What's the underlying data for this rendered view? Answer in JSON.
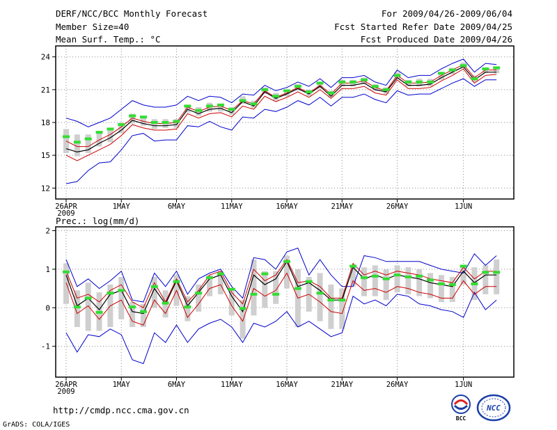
{
  "header": {
    "title": "DERF/NCC/BCC Monthly Forecast",
    "member_size": "Member Size=40",
    "variable": "Mean Surf. Temp.: °C",
    "period": "For 2009/04/26-2009/06/04",
    "started": "Fcst Started Refer Date 2009/04/25",
    "produced": "Fcst Produced Date 2009/04/26"
  },
  "precip_title": "Prec.: log(mm/d)",
  "footer": {
    "url": "http://cmdp.ncc.cma.gov.cn",
    "credit": "GrADS: COLA/IGES",
    "logo_left_text": "BCC",
    "logo_right_text": "NCC"
  },
  "colors": {
    "envelope": "#0000cc",
    "spread": "#cc0000",
    "mean": "#000000",
    "box": "#cfcfcf",
    "obs": "#33dd33"
  },
  "chart_data": [
    {
      "type": "line",
      "title": "Mean Surf. Temp.: °C",
      "ylim": [
        11,
        25
      ],
      "yticks": [
        12,
        15,
        18,
        21,
        24
      ],
      "xticks": [
        {
          "day": 0,
          "label": "26APR",
          "sub": "2009"
        },
        {
          "day": 5,
          "label": "1MAY"
        },
        {
          "day": 10,
          "label": "6MAY"
        },
        {
          "day": 15,
          "label": "11MAY"
        },
        {
          "day": 20,
          "label": "16MAY"
        },
        {
          "day": 25,
          "label": "21MAY"
        },
        {
          "day": 30,
          "label": "26MAY"
        },
        {
          "day": 36,
          "label": "1JUN"
        }
      ],
      "series": [
        {
          "name": "max",
          "values": [
            18.4,
            18.1,
            17.6,
            18.0,
            18.4,
            19.2,
            20.0,
            19.6,
            19.4,
            19.4,
            19.6,
            20.4,
            20.0,
            20.4,
            20.3,
            19.8,
            20.6,
            20.5,
            21.4,
            20.9,
            21.2,
            21.7,
            21.3,
            22.0,
            21.2,
            22.1,
            22.1,
            22.3,
            21.7,
            21.4,
            22.8,
            22.1,
            22.3,
            22.3,
            22.9,
            23.4,
            23.8,
            22.6,
            23.4,
            23.3
          ]
        },
        {
          "name": "upper",
          "values": [
            16.3,
            15.8,
            15.8,
            16.4,
            16.9,
            17.6,
            18.4,
            18.1,
            17.9,
            17.9,
            18.0,
            19.4,
            19.0,
            19.4,
            19.5,
            19.1,
            20.0,
            19.7,
            20.9,
            20.3,
            20.7,
            21.2,
            20.7,
            21.4,
            20.6,
            21.6,
            21.6,
            21.8,
            21.2,
            20.9,
            22.3,
            21.6,
            21.6,
            21.7,
            22.3,
            22.8,
            23.3,
            22.1,
            22.8,
            22.8
          ]
        },
        {
          "name": "mean",
          "values": [
            15.6,
            15.3,
            15.5,
            16.1,
            16.6,
            17.3,
            18.2,
            17.9,
            17.7,
            17.7,
            17.8,
            19.2,
            18.8,
            19.2,
            19.3,
            18.9,
            19.9,
            19.5,
            20.8,
            20.2,
            20.6,
            21.1,
            20.6,
            21.3,
            20.4,
            21.4,
            21.4,
            21.6,
            21.0,
            20.8,
            22.1,
            21.4,
            21.4,
            21.5,
            22.1,
            22.6,
            23.1,
            21.9,
            22.6,
            22.6
          ]
        },
        {
          "name": "lower",
          "values": [
            15.0,
            14.5,
            15.0,
            15.5,
            16.0,
            16.8,
            17.8,
            17.5,
            17.3,
            17.3,
            17.4,
            18.8,
            18.4,
            18.8,
            18.9,
            18.5,
            19.5,
            19.2,
            20.4,
            19.9,
            20.3,
            20.8,
            20.3,
            21.0,
            20.2,
            21.1,
            21.1,
            21.3,
            20.7,
            20.5,
            21.9,
            21.1,
            21.1,
            21.2,
            21.8,
            22.3,
            22.9,
            21.6,
            22.3,
            22.4
          ]
        },
        {
          "name": "min",
          "values": [
            12.4,
            12.6,
            13.6,
            14.3,
            14.4,
            15.5,
            16.8,
            17.0,
            16.3,
            16.4,
            16.4,
            17.7,
            17.6,
            18.1,
            17.6,
            17.3,
            18.5,
            18.4,
            19.2,
            19.0,
            19.4,
            20.0,
            19.6,
            20.3,
            19.5,
            20.3,
            20.3,
            20.6,
            20.1,
            19.8,
            20.9,
            20.5,
            20.6,
            20.6,
            21.1,
            21.6,
            22.0,
            21.3,
            21.9,
            21.9
          ]
        },
        {
          "name": "box_top",
          "values": [
            17.4,
            16.9,
            16.9,
            17.2,
            17.4,
            18.0,
            18.8,
            18.6,
            18.3,
            18.3,
            18.3,
            19.6,
            19.4,
            19.8,
            19.7,
            19.4,
            20.4,
            20.0,
            21.2,
            20.7,
            21.0,
            21.5,
            21.0,
            21.7,
            20.9,
            21.9,
            21.9,
            22.1,
            21.5,
            21.2,
            22.6,
            21.9,
            22.0,
            22.0,
            22.6,
            23.0,
            23.5,
            22.3,
            23.0,
            23.0
          ]
        },
        {
          "name": "box_bottom",
          "values": [
            15.2,
            14.9,
            15.2,
            15.8,
            16.2,
            17.0,
            17.9,
            17.7,
            17.4,
            17.5,
            17.5,
            18.9,
            18.6,
            19.0,
            19.0,
            18.7,
            19.7,
            19.3,
            20.6,
            20.0,
            20.4,
            20.9,
            20.4,
            21.1,
            20.3,
            21.3,
            21.3,
            21.5,
            20.9,
            20.6,
            22.0,
            21.3,
            21.3,
            21.3,
            21.9,
            22.4,
            23.0,
            21.7,
            22.5,
            22.5
          ]
        },
        {
          "name": "observed",
          "values": [
            16.7,
            16.2,
            16.5,
            17.1,
            17.4,
            17.8,
            18.6,
            18.5,
            18.0,
            18.0,
            18.1,
            19.5,
            19.1,
            19.5,
            19.6,
            19.2,
            20.0,
            19.7,
            21.0,
            20.4,
            20.9,
            21.3,
            20.8,
            21.6,
            20.7,
            21.7,
            21.7,
            21.9,
            21.3,
            21.0,
            22.3,
            21.7,
            21.7,
            21.7,
            22.5,
            22.8,
            23.2,
            22.0,
            22.9,
            23.0
          ]
        }
      ]
    },
    {
      "type": "line",
      "title": "Prec.: log(mm/d)",
      "ylim": [
        -1.8,
        2.1
      ],
      "yticks": [
        -1,
        0,
        1,
        2
      ],
      "xticks": [
        {
          "day": 0,
          "label": "26APR",
          "sub": "2009"
        },
        {
          "day": 5,
          "label": "1MAY"
        },
        {
          "day": 10,
          "label": "6MAY"
        },
        {
          "day": 15,
          "label": "11MAY"
        },
        {
          "day": 20,
          "label": "16MAY"
        },
        {
          "day": 25,
          "label": "21MAY"
        },
        {
          "day": 30,
          "label": "26MAY"
        },
        {
          "day": 36,
          "label": "1JUN"
        }
      ],
      "series": [
        {
          "name": "max",
          "values": [
            1.25,
            0.55,
            0.75,
            0.5,
            0.7,
            0.95,
            0.2,
            0.15,
            0.9,
            0.55,
            0.95,
            0.35,
            0.75,
            0.9,
            1.0,
            0.55,
            0.25,
            1.3,
            1.25,
            1.0,
            1.45,
            1.55,
            0.85,
            1.25,
            0.85,
            0.55,
            0.55,
            1.35,
            1.3,
            1.2,
            1.2,
            1.2,
            1.2,
            1.1,
            1.0,
            0.95,
            0.9,
            1.4,
            1.1,
            1.35
          ]
        },
        {
          "name": "upper",
          "values": [
            0.95,
            0.25,
            0.35,
            0.15,
            0.45,
            0.6,
            0.15,
            0.0,
            0.65,
            0.15,
            0.75,
            0.15,
            0.45,
            0.85,
            0.95,
            0.4,
            0.1,
            1.0,
            0.7,
            0.85,
            1.25,
            0.65,
            0.7,
            0.55,
            0.25,
            0.25,
            1.15,
            0.85,
            0.95,
            0.85,
            0.95,
            0.9,
            0.85,
            0.75,
            0.7,
            0.65,
            1.05,
            0.75,
            0.95,
            0.95
          ]
        },
        {
          "name": "mean",
          "values": [
            0.85,
            0.05,
            0.25,
            -0.05,
            0.35,
            0.45,
            -0.1,
            -0.15,
            0.5,
            0.1,
            0.7,
            0.05,
            0.4,
            0.75,
            0.85,
            0.3,
            -0.1,
            0.85,
            0.6,
            0.75,
            1.2,
            0.55,
            0.65,
            0.45,
            0.2,
            0.2,
            1.05,
            0.75,
            0.85,
            0.75,
            0.85,
            0.8,
            0.75,
            0.65,
            0.6,
            0.55,
            0.95,
            0.65,
            0.85,
            0.85
          ]
        },
        {
          "name": "lower",
          "values": [
            0.65,
            -0.15,
            0.05,
            -0.3,
            0.05,
            0.2,
            -0.35,
            -0.45,
            0.2,
            -0.15,
            0.45,
            -0.25,
            0.1,
            0.5,
            0.6,
            0.05,
            -0.35,
            0.5,
            0.3,
            0.45,
            0.9,
            0.25,
            0.35,
            0.15,
            -0.1,
            -0.15,
            0.7,
            0.45,
            0.5,
            0.4,
            0.55,
            0.5,
            0.4,
            0.35,
            0.25,
            0.25,
            0.7,
            0.35,
            0.55,
            0.55
          ]
        },
        {
          "name": "min",
          "values": [
            -0.65,
            -1.15,
            -0.7,
            -0.75,
            -0.55,
            -0.7,
            -1.35,
            -1.45,
            -0.65,
            -0.9,
            -0.45,
            -0.9,
            -0.55,
            -0.4,
            -0.3,
            -0.5,
            -0.9,
            -0.4,
            -0.5,
            -0.35,
            -0.1,
            -0.5,
            -0.35,
            -0.55,
            -0.75,
            -0.65,
            0.3,
            0.1,
            0.2,
            0.05,
            0.35,
            0.3,
            0.1,
            0.05,
            -0.05,
            -0.1,
            -0.25,
            0.4,
            -0.05,
            0.2
          ]
        },
        {
          "name": "box_top",
          "values": [
            1.15,
            0.45,
            0.65,
            0.4,
            0.6,
            0.8,
            0.15,
            0.1,
            0.8,
            0.45,
            0.85,
            0.3,
            0.6,
            0.85,
            0.95,
            0.5,
            0.2,
            1.25,
            0.95,
            0.95,
            1.35,
            1.0,
            0.8,
            0.9,
            0.6,
            0.5,
            1.1,
            1.05,
            1.1,
            1.0,
            1.1,
            1.05,
            1.0,
            0.9,
            0.85,
            0.8,
            1.05,
            1.05,
            1.1,
            1.25
          ]
        },
        {
          "name": "box_bottom",
          "values": [
            0.1,
            -0.5,
            -0.6,
            -0.6,
            -0.5,
            -0.3,
            -0.5,
            -0.5,
            0.0,
            -0.25,
            0.05,
            -0.35,
            -0.1,
            0.3,
            0.35,
            -0.2,
            -0.8,
            -0.2,
            0.0,
            0.1,
            0.5,
            -0.5,
            -0.1,
            -0.35,
            -0.55,
            -0.55,
            0.55,
            0.3,
            0.3,
            0.2,
            0.4,
            0.35,
            0.3,
            0.25,
            0.15,
            0.15,
            0.6,
            0.2,
            0.35,
            0.35
          ]
        },
        {
          "name": "observed",
          "values": [
            0.93,
            0.02,
            0.25,
            -0.12,
            0.38,
            0.45,
            0.02,
            -0.1,
            0.55,
            0.12,
            0.68,
            0.02,
            0.38,
            0.78,
            0.88,
            0.48,
            -0.02,
            0.35,
            0.88,
            0.35,
            1.2,
            0.5,
            0.68,
            0.38,
            0.2,
            0.2,
            1.08,
            0.78,
            0.82,
            0.75,
            0.85,
            0.8,
            0.82,
            0.72,
            0.62,
            0.6,
            1.08,
            0.62,
            0.92,
            0.92
          ]
        }
      ]
    }
  ]
}
